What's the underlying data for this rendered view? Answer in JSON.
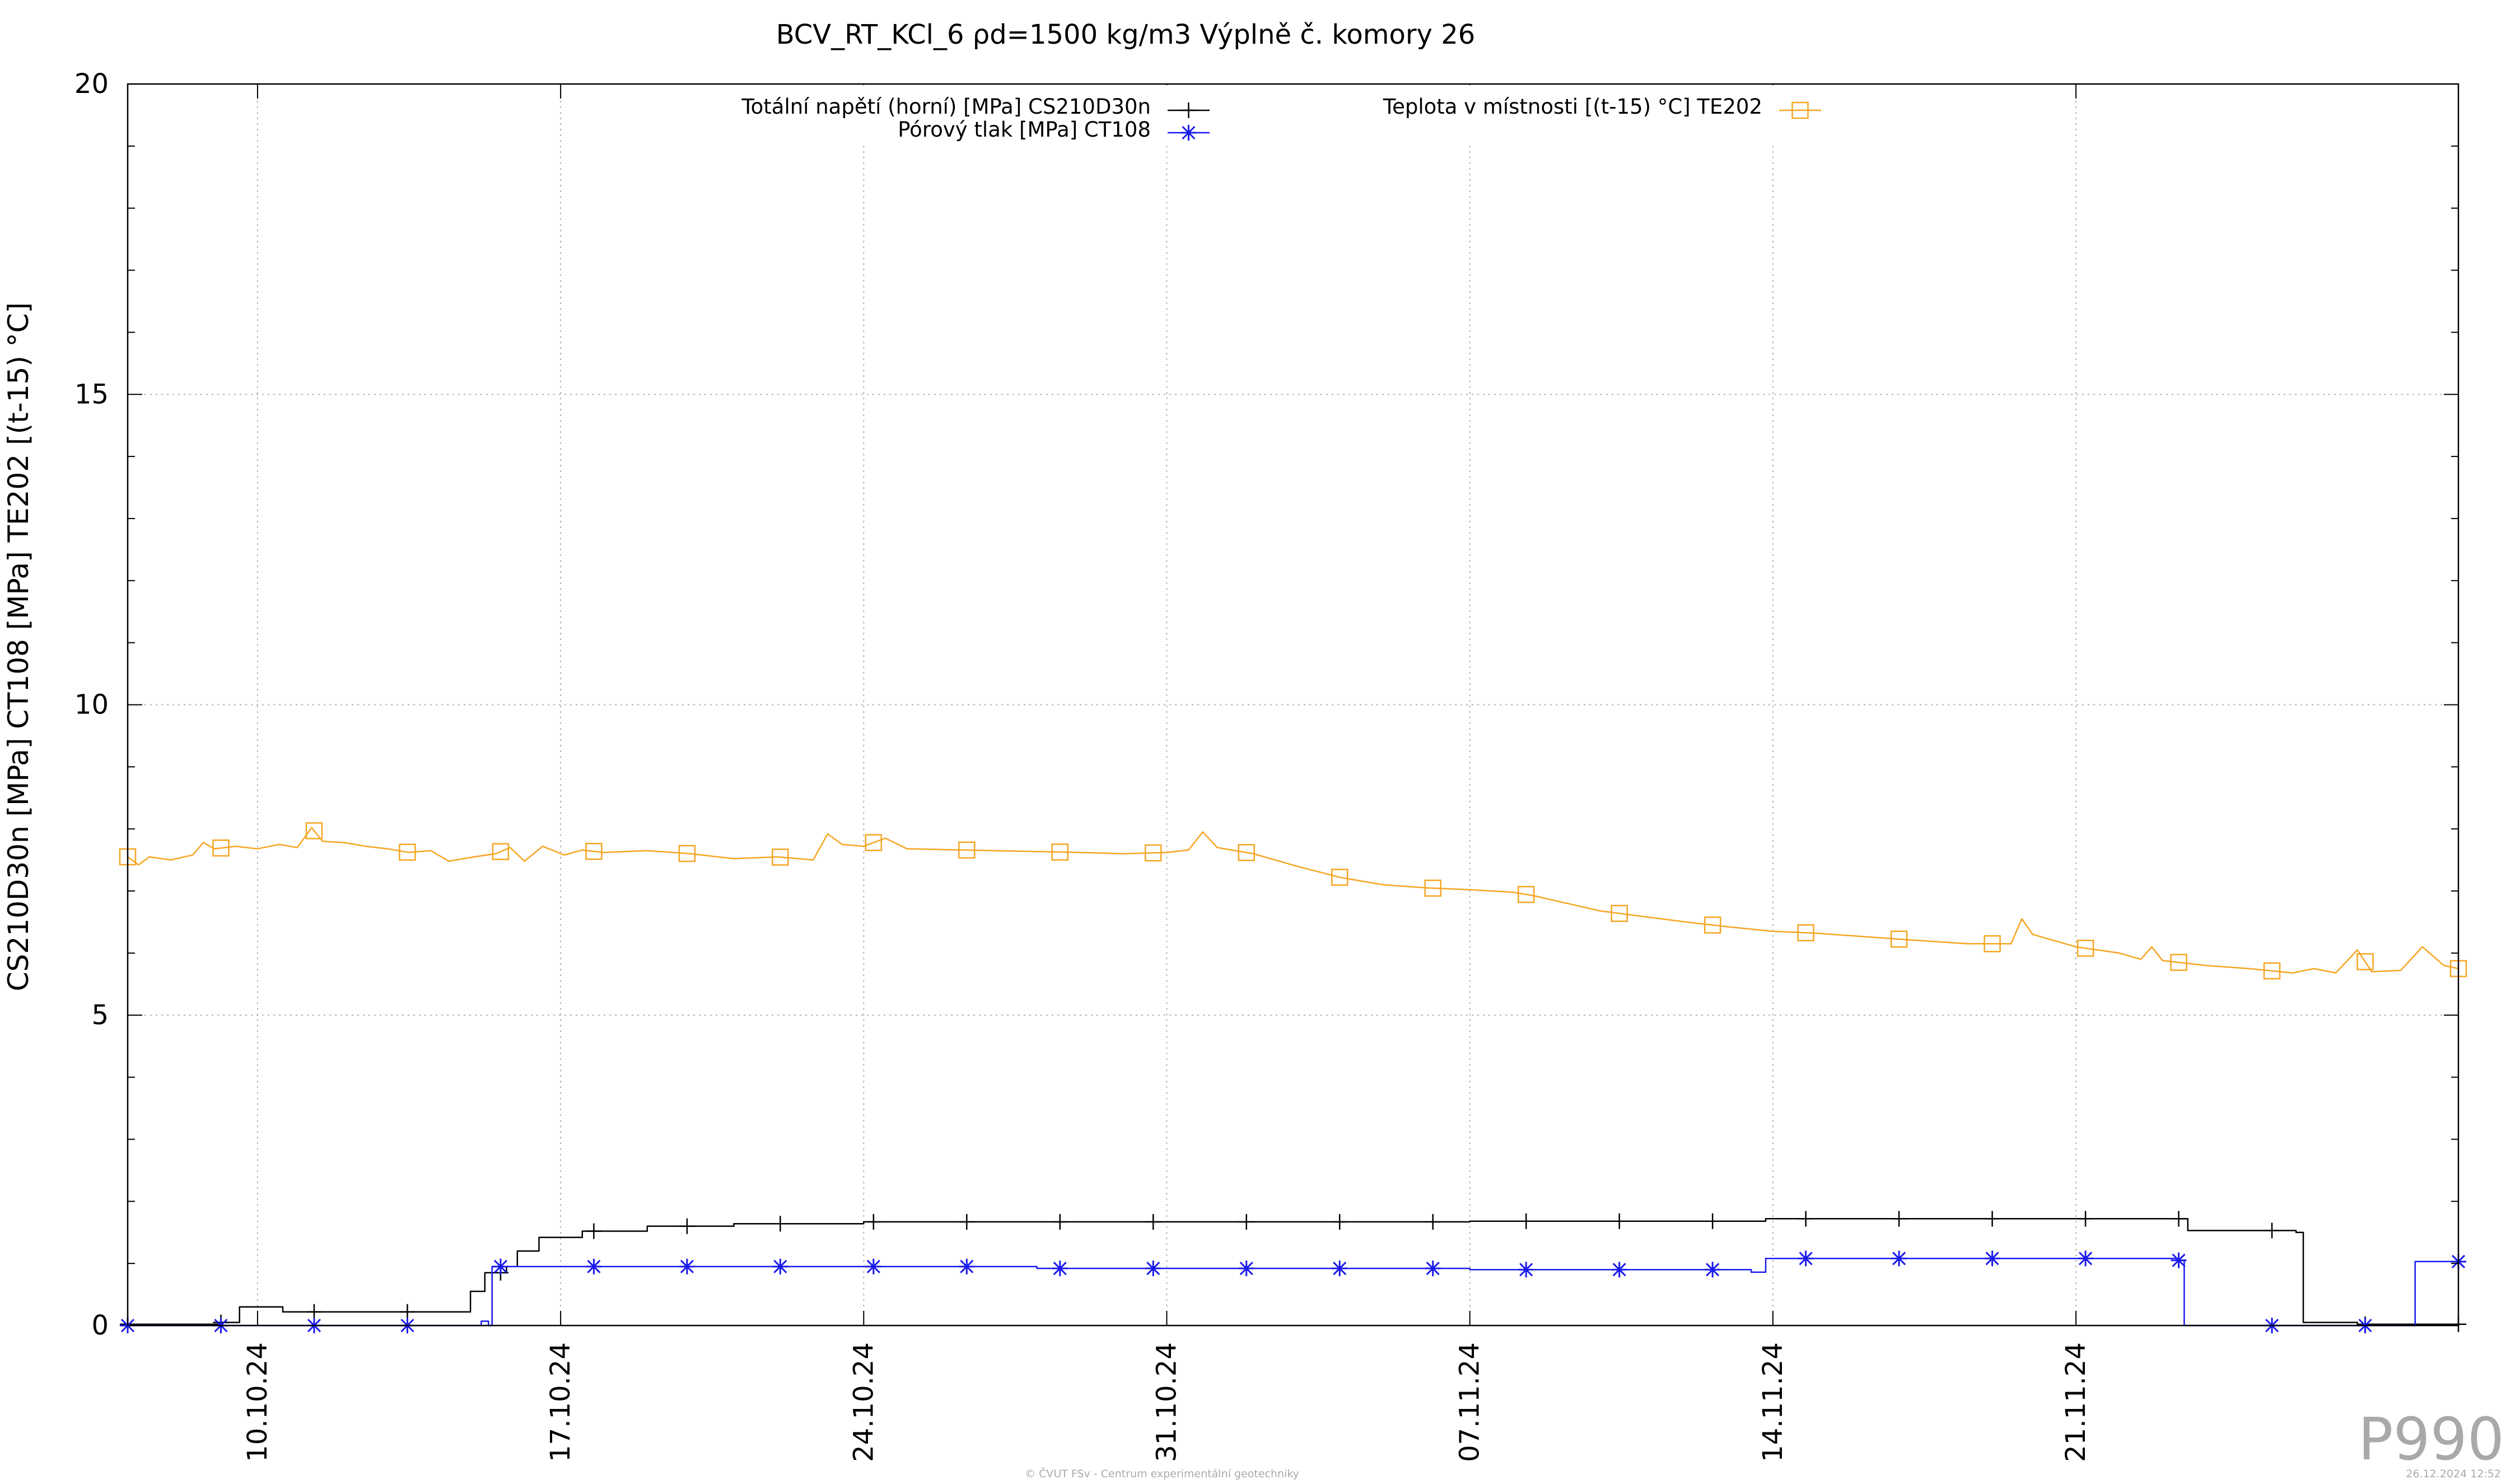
{
  "chart_data": {
    "type": "line",
    "title": "BCV_RT_KCl_6 ρd=1500 kg/m3 Výplně č. komory 26",
    "ylabel": "CS210D30n [MPa] CT108 [MPa] TE202 [(t-15) °C]",
    "xlabel": "",
    "ylim": [
      0,
      20
    ],
    "yticks": [
      0,
      5,
      10,
      15,
      20
    ],
    "xlim": [
      "2024-10-07T00:00",
      "2024-11-29T20:00"
    ],
    "xticks": [
      {
        "date": "2024-10-10",
        "label": "10.10.24"
      },
      {
        "date": "2024-10-17",
        "label": "17.10.24"
      },
      {
        "date": "2024-10-24",
        "label": "24.10.24"
      },
      {
        "date": "2024-10-31",
        "label": "31.10.24"
      },
      {
        "date": "2024-11-07",
        "label": "07.11.24"
      },
      {
        "date": "2024-11-14",
        "label": "14.11.24"
      },
      {
        "date": "2024-11-21",
        "label": "21.11.24"
      }
    ],
    "grid": true,
    "legend_position": "top",
    "series": [
      {
        "name": "Totální napětí (horní) [MPa] CS210D30n",
        "color": "#000000",
        "marker": "plus",
        "step": true,
        "points": [
          [
            "2024-10-07T00:00",
            0.02
          ],
          [
            "2024-10-08T12:00",
            0.02
          ],
          [
            "2024-10-09T02:00",
            0.05
          ],
          [
            "2024-10-09T14:00",
            0.3
          ],
          [
            "2024-10-10T14:00",
            0.22
          ],
          [
            "2024-10-11T12:00",
            0.22
          ],
          [
            "2024-10-13T12:00",
            0.22
          ],
          [
            "2024-10-14T16:00",
            0.22
          ],
          [
            "2024-10-14T22:00",
            0.55
          ],
          [
            "2024-10-15T06:00",
            0.85
          ],
          [
            "2024-10-15T18:00",
            0.95
          ],
          [
            "2024-10-16T00:00",
            1.2
          ],
          [
            "2024-10-16T12:00",
            1.42
          ],
          [
            "2024-10-17T12:00",
            1.52
          ],
          [
            "2024-10-19T00:00",
            1.6
          ],
          [
            "2024-10-21T00:00",
            1.64
          ],
          [
            "2024-10-24T00:00",
            1.67
          ],
          [
            "2024-11-07T00:00",
            1.68
          ],
          [
            "2024-11-13T12:00",
            1.68
          ],
          [
            "2024-11-13T20:00",
            1.72
          ],
          [
            "2024-11-23T10:00",
            1.72
          ],
          [
            "2024-11-23T14:00",
            1.53
          ],
          [
            "2024-11-26T02:00",
            1.5
          ],
          [
            "2024-11-26T06:00",
            0.05
          ],
          [
            "2024-11-27T08:00",
            0.05
          ],
          [
            "2024-11-27T12:00",
            0.02
          ],
          [
            "2024-11-29T20:00",
            0.02
          ]
        ]
      },
      {
        "name": "Pórový tlak [MPa] CT108",
        "color": "#1a1aee",
        "marker": "asterisk",
        "step": true,
        "points": [
          [
            "2024-10-07T00:00",
            0.0
          ],
          [
            "2024-10-14T16:00",
            0.0
          ],
          [
            "2024-10-15T04:00",
            0.07
          ],
          [
            "2024-10-15T08:00",
            0.0
          ],
          [
            "2024-10-15T10:00",
            0.95
          ],
          [
            "2024-10-28T00:00",
            0.92
          ],
          [
            "2024-11-07T00:00",
            0.9
          ],
          [
            "2024-11-13T12:00",
            0.86
          ],
          [
            "2024-11-13T20:00",
            1.08
          ],
          [
            "2024-11-23T08:00",
            1.05
          ],
          [
            "2024-11-23T12:00",
            0.0
          ],
          [
            "2024-11-28T16:00",
            0.0
          ],
          [
            "2024-11-28T20:00",
            1.03
          ],
          [
            "2024-11-29T20:00",
            1.03
          ]
        ]
      },
      {
        "name": "Teplota v místnosti [(t-15) °C] TE202",
        "color": "#f5a623",
        "marker": "square",
        "step": false,
        "points": [
          [
            "2024-10-07T00:00",
            7.55
          ],
          [
            "2024-10-07T06:00",
            7.42
          ],
          [
            "2024-10-07T12:00",
            7.55
          ],
          [
            "2024-10-08T00:00",
            7.5
          ],
          [
            "2024-10-08T12:00",
            7.58
          ],
          [
            "2024-10-08T18:00",
            7.78
          ],
          [
            "2024-10-09T00:00",
            7.68
          ],
          [
            "2024-10-09T12:00",
            7.72
          ],
          [
            "2024-10-10T00:00",
            7.68
          ],
          [
            "2024-10-10T12:00",
            7.75
          ],
          [
            "2024-10-10T22:00",
            7.7
          ],
          [
            "2024-10-11T06:00",
            8.02
          ],
          [
            "2024-10-11T12:00",
            7.8
          ],
          [
            "2024-10-12T00:00",
            7.78
          ],
          [
            "2024-10-12T12:00",
            7.72
          ],
          [
            "2024-10-13T00:00",
            7.68
          ],
          [
            "2024-10-13T12:00",
            7.62
          ],
          [
            "2024-10-14T00:00",
            7.65
          ],
          [
            "2024-10-14T10:00",
            7.48
          ],
          [
            "2024-10-15T00:00",
            7.55
          ],
          [
            "2024-10-15T12:00",
            7.6
          ],
          [
            "2024-10-15T20:00",
            7.7
          ],
          [
            "2024-10-16T04:00",
            7.48
          ],
          [
            "2024-10-16T14:00",
            7.72
          ],
          [
            "2024-10-17T02:00",
            7.58
          ],
          [
            "2024-10-17T12:00",
            7.66
          ],
          [
            "2024-10-18T00:00",
            7.62
          ],
          [
            "2024-10-19T00:00",
            7.65
          ],
          [
            "2024-10-20T00:00",
            7.6
          ],
          [
            "2024-10-21T00:00",
            7.52
          ],
          [
            "2024-10-22T00:00",
            7.55
          ],
          [
            "2024-10-22T20:00",
            7.5
          ],
          [
            "2024-10-23T04:00",
            7.92
          ],
          [
            "2024-10-23T12:00",
            7.75
          ],
          [
            "2024-10-24T00:00",
            7.72
          ],
          [
            "2024-10-24T12:00",
            7.85
          ],
          [
            "2024-10-25T00:00",
            7.68
          ],
          [
            "2024-10-27T00:00",
            7.65
          ],
          [
            "2024-10-29T00:00",
            7.62
          ],
          [
            "2024-10-30T00:00",
            7.6
          ],
          [
            "2024-10-31T00:00",
            7.62
          ],
          [
            "2024-10-31T12:00",
            7.66
          ],
          [
            "2024-10-31T20:00",
            7.95
          ],
          [
            "2024-11-01T04:00",
            7.7
          ],
          [
            "2024-11-02T00:00",
            7.6
          ],
          [
            "2024-11-03T00:00",
            7.4
          ],
          [
            "2024-11-04T00:00",
            7.22
          ],
          [
            "2024-11-05T00:00",
            7.1
          ],
          [
            "2024-11-06T00:00",
            7.05
          ],
          [
            "2024-11-07T00:00",
            7.02
          ],
          [
            "2024-11-08T00:00",
            6.98
          ],
          [
            "2024-11-08T12:00",
            6.92
          ],
          [
            "2024-11-10T00:00",
            6.68
          ],
          [
            "2024-11-12T00:00",
            6.5
          ],
          [
            "2024-11-13T00:00",
            6.42
          ],
          [
            "2024-11-14T00:00",
            6.35
          ],
          [
            "2024-11-15T00:00",
            6.32
          ],
          [
            "2024-11-17T00:00",
            6.22
          ],
          [
            "2024-11-18T12:00",
            6.15
          ],
          [
            "2024-11-19T12:00",
            6.15
          ],
          [
            "2024-11-19T18:00",
            6.55
          ],
          [
            "2024-11-20T00:00",
            6.3
          ],
          [
            "2024-11-21T00:00",
            6.1
          ],
          [
            "2024-11-22T00:00",
            6.0
          ],
          [
            "2024-11-22T12:00",
            5.9
          ],
          [
            "2024-11-22T18:00",
            6.1
          ],
          [
            "2024-11-23T00:00",
            5.88
          ],
          [
            "2024-11-24T00:00",
            5.8
          ],
          [
            "2024-11-25T00:00",
            5.75
          ],
          [
            "2024-11-26T00:00",
            5.68
          ],
          [
            "2024-11-26T12:00",
            5.75
          ],
          [
            "2024-11-27T00:00",
            5.68
          ],
          [
            "2024-11-27T12:00",
            6.05
          ],
          [
            "2024-11-27T20:00",
            5.7
          ],
          [
            "2024-11-28T12:00",
            5.72
          ],
          [
            "2024-11-29T00:00",
            6.1
          ],
          [
            "2024-11-29T12:00",
            5.8
          ],
          [
            "2024-11-29T20:00",
            5.75
          ]
        ]
      }
    ]
  },
  "footer": {
    "copyright": "© ČVUT FSv - Centrum experimentální geotechniky",
    "timestamp": "26.12.2024 12:52",
    "code": "P990"
  }
}
